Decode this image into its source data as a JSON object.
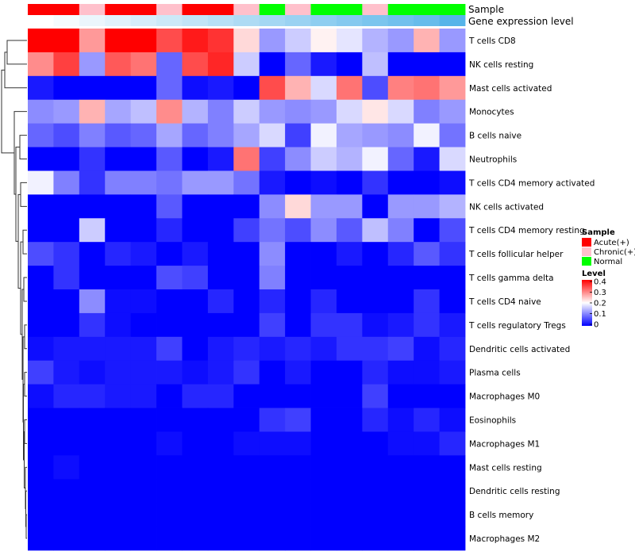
{
  "chart_data": {
    "type": "heatmap",
    "title": "",
    "value_range": [
      0,
      0.4
    ],
    "color_scale": {
      "low": "#0000ff",
      "mid": "#ffffff",
      "high": "#ff0000",
      "midpoint": 0.2
    },
    "rows": [
      "T cells CD8",
      "NK cells resting",
      "Mast cells activated",
      "Monocytes",
      "B cells naive",
      "Neutrophils",
      "T cells CD4 memory activated",
      "NK cells activated",
      "T cells CD4 memory resting",
      "T cells follicular helper",
      "T cells gamma delta",
      "T cells CD4 naive",
      "T cells regulatory  Tregs",
      "Dendritic cells activated",
      "Plasma cells",
      "Macrophages M0",
      "Eosinophils",
      "Macrophages M1",
      "Mast cells resting",
      "Dendritic cells resting",
      "B cells memory",
      "Macrophages M2"
    ],
    "column_annotations": {
      "sample_label": "Sample",
      "expression_label": "Gene expression level",
      "sample": [
        "Acute(+)",
        "Acute(+)",
        "Chronic(+)",
        "Acute(+)",
        "Acute(+)",
        "Chronic(+)",
        "Acute(+)",
        "Acute(+)",
        "Chronic(+)",
        "Normal",
        "Chronic(+)",
        "Normal",
        "Normal",
        "Chronic(+)",
        "Normal",
        "Normal",
        "Normal"
      ],
      "gene_expression_level": [
        0.0,
        0.06,
        0.12,
        0.18,
        0.24,
        0.3,
        0.36,
        0.42,
        0.48,
        0.54,
        0.6,
        0.66,
        0.72,
        0.78,
        0.84,
        0.9,
        1.0
      ]
    },
    "values": [
      [
        0.4,
        0.4,
        0.28,
        0.4,
        0.4,
        0.34,
        0.38,
        0.36,
        0.23,
        0.12,
        0.16,
        0.21,
        0.18,
        0.14,
        0.12,
        0.26,
        0.12
      ],
      [
        0.29,
        0.35,
        0.12,
        0.33,
        0.31,
        0.08,
        0.34,
        0.37,
        0.16,
        0.0,
        0.08,
        0.02,
        0.0,
        0.15,
        0.0,
        0.0,
        0.0
      ],
      [
        0.02,
        0.0,
        0.0,
        0.0,
        0.0,
        0.08,
        0.01,
        0.02,
        0.0,
        0.34,
        0.26,
        0.17,
        0.31,
        0.06,
        0.3,
        0.31,
        0.28
      ],
      [
        0.11,
        0.12,
        0.26,
        0.13,
        0.15,
        0.29,
        0.14,
        0.1,
        0.16,
        0.12,
        0.11,
        0.12,
        0.17,
        0.22,
        0.17,
        0.1,
        0.12
      ],
      [
        0.08,
        0.06,
        0.1,
        0.07,
        0.08,
        0.13,
        0.08,
        0.1,
        0.13,
        0.17,
        0.05,
        0.19,
        0.13,
        0.12,
        0.11,
        0.19,
        0.09
      ],
      [
        0.0,
        0.0,
        0.04,
        0.0,
        0.0,
        0.07,
        0.0,
        0.02,
        0.31,
        0.05,
        0.11,
        0.16,
        0.14,
        0.19,
        0.08,
        0.02,
        0.17
      ],
      [
        0.19,
        0.1,
        0.04,
        0.1,
        0.1,
        0.09,
        0.12,
        0.12,
        0.09,
        0.02,
        0.0,
        0.01,
        0.0,
        0.04,
        0.0,
        0.0,
        0.01
      ],
      [
        0.0,
        0.0,
        0.0,
        0.0,
        0.0,
        0.07,
        0.0,
        0.0,
        0.0,
        0.11,
        0.23,
        0.12,
        0.12,
        0.0,
        0.12,
        0.12,
        0.14
      ],
      [
        0.0,
        0.0,
        0.16,
        0.0,
        0.0,
        0.03,
        0.0,
        0.0,
        0.05,
        0.09,
        0.06,
        0.11,
        0.07,
        0.15,
        0.1,
        0.0,
        0.06
      ],
      [
        0.06,
        0.04,
        0.0,
        0.03,
        0.02,
        0.0,
        0.02,
        0.0,
        0.0,
        0.11,
        0.0,
        0.0,
        0.02,
        0.0,
        0.03,
        0.07,
        0.04
      ],
      [
        0.0,
        0.04,
        0.0,
        0.0,
        0.0,
        0.06,
        0.05,
        0.0,
        0.0,
        0.1,
        0.0,
        0.0,
        0.0,
        0.0,
        0.0,
        0.0,
        0.0
      ],
      [
        0.0,
        0.0,
        0.11,
        0.01,
        0.01,
        0.0,
        0.0,
        0.03,
        0.0,
        0.03,
        0.0,
        0.03,
        0.0,
        0.0,
        0.0,
        0.04,
        0.0
      ],
      [
        0.0,
        0.0,
        0.04,
        0.01,
        0.0,
        0.0,
        0.0,
        0.0,
        0.0,
        0.05,
        0.0,
        0.04,
        0.04,
        0.01,
        0.02,
        0.04,
        0.02
      ],
      [
        0.01,
        0.02,
        0.02,
        0.02,
        0.02,
        0.05,
        0.0,
        0.02,
        0.03,
        0.02,
        0.03,
        0.02,
        0.04,
        0.04,
        0.05,
        0.01,
        0.03
      ],
      [
        0.05,
        0.02,
        0.01,
        0.02,
        0.02,
        0.02,
        0.01,
        0.02,
        0.04,
        0.0,
        0.02,
        0.0,
        0.0,
        0.03,
        0.01,
        0.01,
        0.02
      ],
      [
        0.01,
        0.03,
        0.03,
        0.02,
        0.02,
        0.0,
        0.03,
        0.03,
        0.0,
        0.0,
        0.0,
        0.0,
        0.0,
        0.05,
        0.0,
        0.0,
        0.0
      ],
      [
        0.0,
        0.0,
        0.0,
        0.0,
        0.0,
        0.0,
        0.0,
        0.0,
        0.0,
        0.04,
        0.05,
        0.0,
        0.0,
        0.03,
        0.01,
        0.03,
        0.01
      ],
      [
        0.0,
        0.0,
        0.0,
        0.0,
        0.0,
        0.01,
        0.0,
        0.0,
        0.01,
        0.01,
        0.01,
        0.0,
        0.0,
        0.0,
        0.01,
        0.01,
        0.03
      ],
      [
        0.0,
        0.01,
        0.0,
        0.0,
        0.0,
        0.0,
        0.0,
        0.0,
        0.0,
        0.0,
        0.0,
        0.0,
        0.0,
        0.0,
        0.0,
        0.0,
        0.0
      ],
      [
        0.0,
        0.0,
        0.0,
        0.0,
        0.0,
        0.0,
        0.0,
        0.0,
        0.0,
        0.0,
        0.0,
        0.0,
        0.0,
        0.0,
        0.0,
        0.0,
        0.0
      ],
      [
        0.0,
        0.0,
        0.0,
        0.0,
        0.0,
        0.0,
        0.0,
        0.0,
        0.0,
        0.0,
        0.0,
        0.0,
        0.0,
        0.0,
        0.0,
        0.0,
        0.0
      ],
      [
        0.0,
        0.0,
        0.0,
        0.0,
        0.0,
        0.0,
        0.0,
        0.0,
        0.0,
        0.0,
        0.0,
        0.0,
        0.0,
        0.0,
        0.0,
        0.0,
        0.0
      ]
    ],
    "sample_colors": {
      "Acute(+)": "#ff0000",
      "Chronic(+)": "#ffc0cb",
      "Normal": "#00ff00"
    },
    "expression_color_scale": {
      "low": "#ffffff",
      "high": "#56b4e9"
    },
    "legend": {
      "position": "right",
      "sample_title": "Sample",
      "sample_entries": [
        "Acute(+)",
        "Chronic(+)",
        "Normal"
      ],
      "level_title": "Level",
      "level_ticks": [
        "0.4",
        "0.3",
        "0.2",
        "0.1",
        "0"
      ]
    },
    "dendrogram": "rows"
  }
}
